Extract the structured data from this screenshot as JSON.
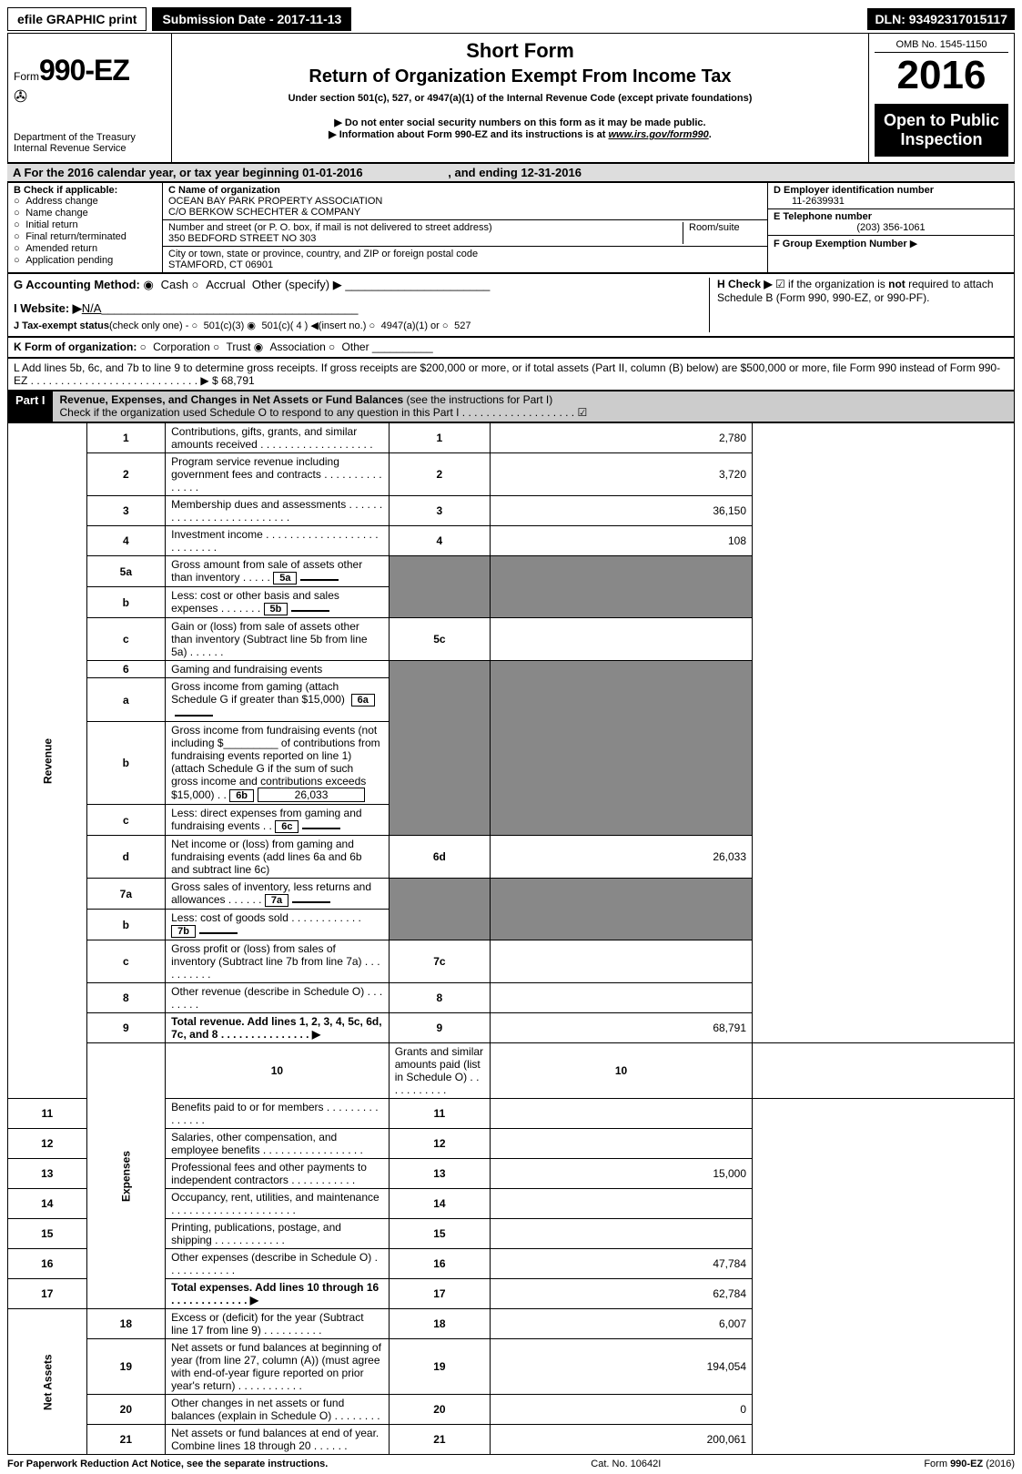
{
  "top": {
    "efile": "efile GRAPHIC print",
    "submission": "Submission Date - 2017-11-13",
    "dln": "DLN: 93492317015117"
  },
  "header": {
    "form_prefix": "Form",
    "form_no": "990-EZ",
    "dept": "Department of the Treasury\nInternal Revenue Service",
    "short": "Short Form",
    "title": "Return of Organization Exempt From Income Tax",
    "subtitle": "Under section 501(c), 527, or 4947(a)(1) of the Internal Revenue Code (except private foundations)",
    "note1": "▶ Do not enter social security numbers on this form as it may be made public.",
    "note2": "▶ Information about Form 990-EZ and its instructions is at ",
    "note2_link": "www.irs.gov/form990",
    "note2_suffix": ".",
    "omb": "OMB No. 1545-1150",
    "year": "2016",
    "open": "Open to Public Inspection"
  },
  "A": {
    "text": "A For the 2016 calendar year, or tax year beginning 01-01-2016",
    "ending": ", and ending 12-31-2016"
  },
  "B": {
    "label": "B Check if applicable:",
    "opts": [
      "Address change",
      "Name change",
      "Initial return",
      "Final return/terminated",
      "Amended return",
      "Application pending"
    ]
  },
  "C": {
    "name_label": "C Name of organization",
    "name": "OCEAN BAY PARK PROPERTY ASSOCIATION",
    "co": "C/O BERKOW SCHECHTER & COMPANY",
    "addr_label": "Number and street (or P. O. box, if mail is not delivered to street address)",
    "room_label": "Room/suite",
    "addr": "350 BEDFORD STREET NO 303",
    "city_label": "City or town, state or province, country, and ZIP or foreign postal code",
    "city": "STAMFORD, CT  06901"
  },
  "D": {
    "label": "D Employer identification number",
    "value": "11-2639931"
  },
  "E": {
    "label": "E Telephone number",
    "value": "(203) 356-1061"
  },
  "F": {
    "label": "F Group Exemption Number",
    "arrow": "▶"
  },
  "G": {
    "label": "G Accounting Method:",
    "cash": "Cash",
    "accrual": "Accrual",
    "other": "Other (specify) ▶"
  },
  "H": {
    "label": "H   Check ▶",
    "text": "if the organization is ",
    "not": "not",
    "text2": " required to attach Schedule B (Form 990, 990-EZ, or 990-PF)."
  },
  "I": {
    "label": "I Website: ▶",
    "value": "N/A"
  },
  "J": {
    "label": "J Tax-exempt status",
    "text": "(check only one) -",
    "o1": "501(c)(3)",
    "o2": "501(c)( 4 ) ◀(insert no.)",
    "o3": "4947(a)(1) or",
    "o4": "527"
  },
  "K": {
    "label": "K Form of organization:",
    "opts": [
      "Corporation",
      "Trust",
      "Association",
      "Other"
    ]
  },
  "L": {
    "text": "L Add lines 5b, 6c, and 7b to line 9 to determine gross receipts. If gross receipts are $200,000 or more, or if total assets (Part II, column (B) below) are $500,000 or more, file Form 990 instead of Form 990-EZ . . . . . . . . . . . . . . . . . . . . . . . . . . . . ▶",
    "amount": "$ 68,791"
  },
  "part1": {
    "title": "Part I",
    "heading": "Revenue, Expenses, and Changes in Net Assets or Fund Balances",
    "note": "(see the instructions for Part I)",
    "check_line": "Check if the organization used Schedule O to respond to any question in this Part I . . . . . . . . . . . . . . . . . . ."
  },
  "sections": {
    "revenue": "Revenue",
    "expenses": "Expenses",
    "netassets": "Net Assets"
  },
  "lines": {
    "1": {
      "t": "Contributions, gifts, grants, and similar amounts received . . . . . . . . . . . . . . . . . . .",
      "n": "1",
      "v": "2,780"
    },
    "2": {
      "t": "Program service revenue including government fees and contracts . . . . . . . . . . . . . . .",
      "n": "2",
      "v": "3,720"
    },
    "3": {
      "t": "Membership dues and assessments . . . . . . . . . . . . . . . . . . . . . . . . . .",
      "n": "3",
      "v": "36,150"
    },
    "4": {
      "t": "Investment income . . . . . . . . . . . . . . . . . . . . . . . . . . .",
      "n": "4",
      "v": "108"
    },
    "5a": {
      "t": "Gross amount from sale of assets other than inventory . . . . .",
      "sub": "5a",
      "sv": ""
    },
    "5b": {
      "t": "Less: cost or other basis and sales expenses . . . . . . .",
      "sub": "5b",
      "sv": ""
    },
    "5c": {
      "t": "Gain or (loss) from sale of assets other than inventory (Subtract line 5b from line 5a) . . . . . .",
      "n": "5c",
      "v": ""
    },
    "6": {
      "t": "Gaming and fundraising events"
    },
    "6a": {
      "t": "Gross income from gaming (attach Schedule G if greater than $15,000)",
      "sub": "6a",
      "sv": ""
    },
    "6b_pre": "Gross income from fundraising events (not including $",
    "6b_mid": " of contributions from fundraising events reported on line 1) (attach Schedule G if the sum of such gross income and contributions exceeds $15,000)   .  .",
    "6b": {
      "sub": "6b",
      "sv": "26,033"
    },
    "6c": {
      "t": "Less: direct expenses from gaming and fundraising events    .  .",
      "sub": "6c",
      "sv": ""
    },
    "6d": {
      "t": "Net income or (loss) from gaming and fundraising events (add lines 6a and 6b and subtract line 6c)",
      "n": "6d",
      "v": "26,033"
    },
    "7a": {
      "t": "Gross sales of inventory, less returns and allowances . . . . . .",
      "sub": "7a",
      "sv": ""
    },
    "7b": {
      "t": "Less: cost of goods sold          .   .   .   .   .   .   .   .   .   .   .   .",
      "sub": "7b",
      "sv": ""
    },
    "7c": {
      "t": "Gross profit or (loss) from sales of inventory (Subtract line 7b from line 7a) . . . . . . . . . .",
      "n": "7c",
      "v": ""
    },
    "8": {
      "t": "Other revenue (describe in Schedule O)                             .   .   .   .   .   .   .   .",
      "n": "8",
      "v": ""
    },
    "9": {
      "t": "Total revenue. Add lines 1, 2, 3, 4, 5c, 6d, 7c, and 8 . . . . . . . . . . . . . . .    ▶",
      "n": "9",
      "v": "68,791",
      "bold": true
    },
    "10": {
      "t": "Grants and similar amounts paid (list in Schedule O)         .   .   .   .   .   .   .   .   .   .   .",
      "n": "10",
      "v": ""
    },
    "11": {
      "t": "Benefits paid to or for members             .   .   .   .   .   .   .   .   .   .   .   .   .   .   .",
      "n": "11",
      "v": ""
    },
    "12": {
      "t": "Salaries, other compensation, and employee benefits . . . . . . . . . . . . . . . . .",
      "n": "12",
      "v": ""
    },
    "13": {
      "t": "Professional fees and other payments to independent contractors  .  .  .  .  .  .  .  .  .  .  .",
      "n": "13",
      "v": "15,000"
    },
    "14": {
      "t": "Occupancy, rent, utilities, and maintenance . . . . . . . . . . . . . . . . . . . . .",
      "n": "14",
      "v": ""
    },
    "15": {
      "t": "Printing, publications, postage, and shipping           .   .   .   .   .   .   .   .   .   .   .   .",
      "n": "15",
      "v": ""
    },
    "16": {
      "t": "Other expenses (describe in Schedule O)               .   .   .   .   .   .   .   .   .   .   .   .",
      "n": "16",
      "v": "47,784"
    },
    "17": {
      "t": "Total expenses. Add lines 10 through 16         .   .   .   .   .   .   .   .   .   .   .   .   . ▶",
      "n": "17",
      "v": "62,784",
      "bold": true
    },
    "18": {
      "t": "Excess or (deficit) for the year (Subtract line 17 from line 9)      .   .   .   .   .   .   .   .   .   .",
      "n": "18",
      "v": "6,007"
    },
    "19": {
      "t": "Net assets or fund balances at beginning of year (from line 27, column (A)) (must agree with end-of-year figure reported on prior year's return)                .   .   .   .   .   .   .   .   .   .   .",
      "n": "19",
      "v": "194,054"
    },
    "20": {
      "t": "Other changes in net assets or fund balances (explain in Schedule O)    .   .   .   .   .   .   .   .",
      "n": "20",
      "v": "0"
    },
    "21": {
      "t": "Net assets or fund balances at end of year. Combine lines 18 through 20      .   .   .   .   .   .",
      "n": "21",
      "v": "200,061"
    }
  },
  "footer": {
    "left": "For Paperwork Reduction Act Notice, see the separate instructions.",
    "mid": "Cat. No. 10642I",
    "right_pre": "Form ",
    "right_bold": "990-EZ",
    "right_suf": " (2016)"
  }
}
